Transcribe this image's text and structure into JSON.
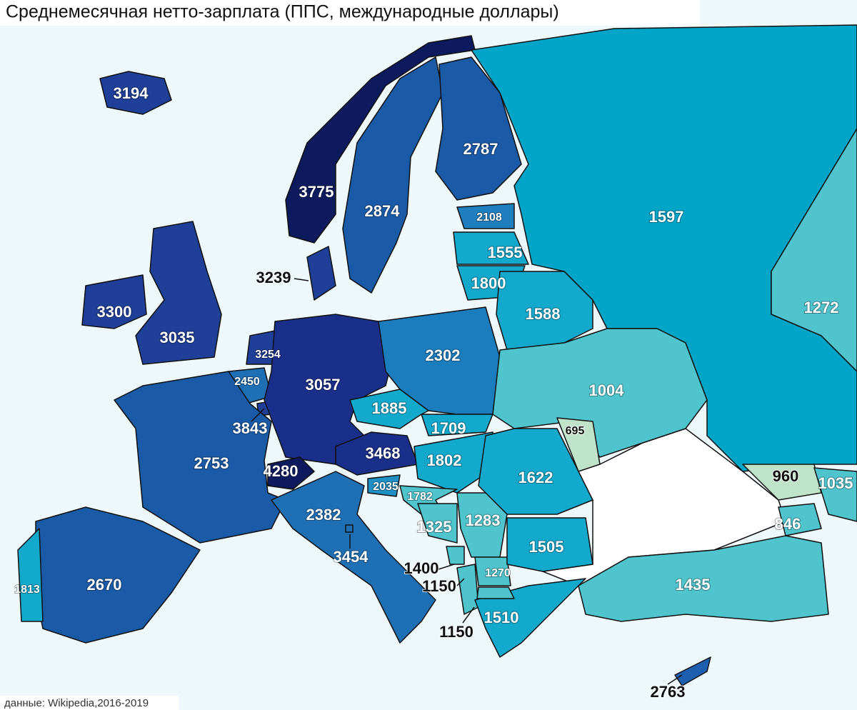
{
  "title": "Среднемесячная нетто-зарплата (ППС, международные доллары)",
  "source": "данные: Wikipedia,2016-2019",
  "regions": [
    {
      "value": 3194,
      "color": "#1f3f99"
    },
    {
      "value": 3775,
      "color": "#0d1a5e"
    },
    {
      "value": 2874,
      "color": "#1a5aa6"
    },
    {
      "value": 2787,
      "color": "#1a5aa6"
    },
    {
      "value": 1597,
      "color": "#00a5c8"
    },
    {
      "value": 2108,
      "color": "#1f7fbf"
    },
    {
      "value": 1555,
      "color": "#12a9cc"
    },
    {
      "value": 1800,
      "color": "#12a9cc"
    },
    {
      "value": 1588,
      "color": "#12a9cc"
    },
    {
      "value": 1272,
      "color": "#4fc4cc"
    },
    {
      "value": 3239,
      "color": "#1f3f99"
    },
    {
      "value": 3300,
      "color": "#1f3f99"
    },
    {
      "value": 3035,
      "color": "#1f3f99"
    },
    {
      "value": 3254,
      "color": "#1f3f99"
    },
    {
      "value": 2450,
      "color": "#1f6fb5"
    },
    {
      "value": 3843,
      "color": "#1f3f99"
    },
    {
      "value": 3057,
      "color": "#1a2f8a"
    },
    {
      "value": 2302,
      "color": "#1b7dbd"
    },
    {
      "value": 1885,
      "color": "#12a9cc"
    },
    {
      "value": 1709,
      "color": "#12a9cc"
    },
    {
      "value": 3468,
      "color": "#1a2f8a"
    },
    {
      "value": 4280,
      "color": "#0d1a5e"
    },
    {
      "value": 2753,
      "color": "#1a5aa6"
    },
    {
      "value": 1802,
      "color": "#12a9cc"
    },
    {
      "value": 1004,
      "color": "#4fc4cc"
    },
    {
      "value": 695,
      "color": "#bfe3c8"
    },
    {
      "value": 1622,
      "color": "#12a9cc"
    },
    {
      "value": 2035,
      "color": "#1f8fc4"
    },
    {
      "value": 1782,
      "color": "#4fc4cc"
    },
    {
      "value": 1325,
      "color": "#4fc4cc"
    },
    {
      "value": 1283,
      "color": "#4fc4cc"
    },
    {
      "value": 1400,
      "color": "#4fc4cc"
    },
    {
      "value": 1150,
      "color": "#4fc4cc"
    },
    {
      "value": 1270,
      "color": "#4fc4cc"
    },
    {
      "value": 1505,
      "color": "#12a9cc"
    },
    {
      "value": 1510,
      "color": "#12a9cc"
    },
    {
      "value": 1150,
      "color": "#4fc4cc"
    },
    {
      "value": 1435,
      "color": "#4fc4cc"
    },
    {
      "value": 960,
      "color": "#bfe3c8"
    },
    {
      "value": 846,
      "color": "#4fc4cc"
    },
    {
      "value": 1035,
      "color": "#4fc4cc"
    },
    {
      "value": 2382,
      "color": "#1f6fb5"
    },
    {
      "value": 3454,
      "color": "#1f6fb5"
    },
    {
      "value": 2670,
      "color": "#1a5aa6"
    },
    {
      "value": 1813,
      "color": "#12a9cc"
    },
    {
      "value": 2763,
      "color": "#1f5fb0"
    }
  ]
}
